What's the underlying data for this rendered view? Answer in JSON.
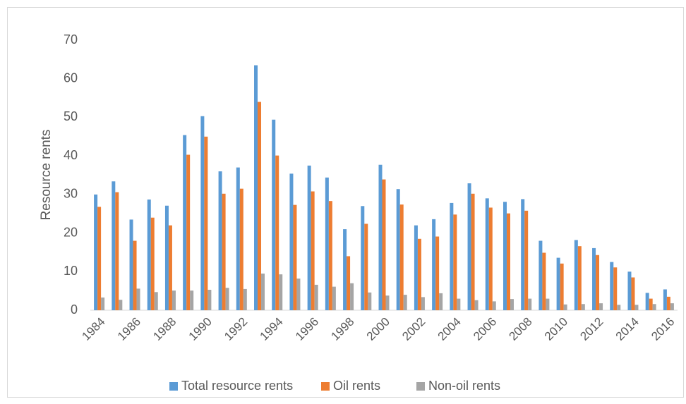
{
  "chart_data": {
    "type": "bar",
    "y_label": "Resource rents",
    "categories": [
      "1984",
      null,
      "1986",
      null,
      "1988",
      null,
      "1990",
      null,
      "1992",
      null,
      "1994",
      null,
      "1996",
      null,
      "1998",
      null,
      "2000",
      null,
      "2002",
      null,
      "2004",
      null,
      "2006",
      null,
      "2008",
      null,
      "2010",
      null,
      "2012",
      null,
      "2014",
      null,
      "2016"
    ],
    "series": [
      {
        "name": "Total resource rents",
        "color": "#5b9bd5",
        "values": [
          30,
          33.4,
          23.5,
          28.7,
          27.1,
          45.4,
          50.3,
          36,
          37,
          63.5,
          49.4,
          35.4,
          37.5,
          34.4,
          21,
          27,
          37.7,
          31.4,
          22,
          23.6,
          27.8,
          32.9,
          29,
          28.1,
          28.8,
          18,
          13.6,
          18.2,
          16.1,
          12.5,
          10,
          4.5,
          5.4
        ]
      },
      {
        "name": "Oil rents",
        "color": "#ed7d31",
        "values": [
          26.8,
          30.6,
          18,
          24,
          22,
          40.3,
          45,
          30.2,
          31.5,
          54,
          40.1,
          27.3,
          30.8,
          28.3,
          14,
          22.4,
          33.9,
          27.4,
          18.5,
          19.1,
          24.8,
          30.2,
          26.6,
          25.1,
          25.8,
          14.9,
          12.1,
          16.6,
          14.3,
          11.1,
          8.5,
          3,
          3.5
        ]
      },
      {
        "name": "Non-oil rents",
        "color": "#a5a5a5",
        "values": [
          3.3,
          2.7,
          5.6,
          4.7,
          5.1,
          5.1,
          5.3,
          5.8,
          5.5,
          9.5,
          9.3,
          8.2,
          6.6,
          6.1,
          7,
          4.6,
          3.8,
          4,
          3.4,
          4.4,
          3,
          2.6,
          2.3,
          2.9,
          3,
          3,
          1.5,
          1.6,
          1.8,
          1.4,
          1.4,
          1.6,
          1.8
        ]
      }
    ],
    "ylim": [
      0,
      70
    ],
    "yticks": [
      0,
      10,
      20,
      30,
      40,
      50,
      60,
      70
    ],
    "grid": false,
    "legend": "bottom"
  }
}
